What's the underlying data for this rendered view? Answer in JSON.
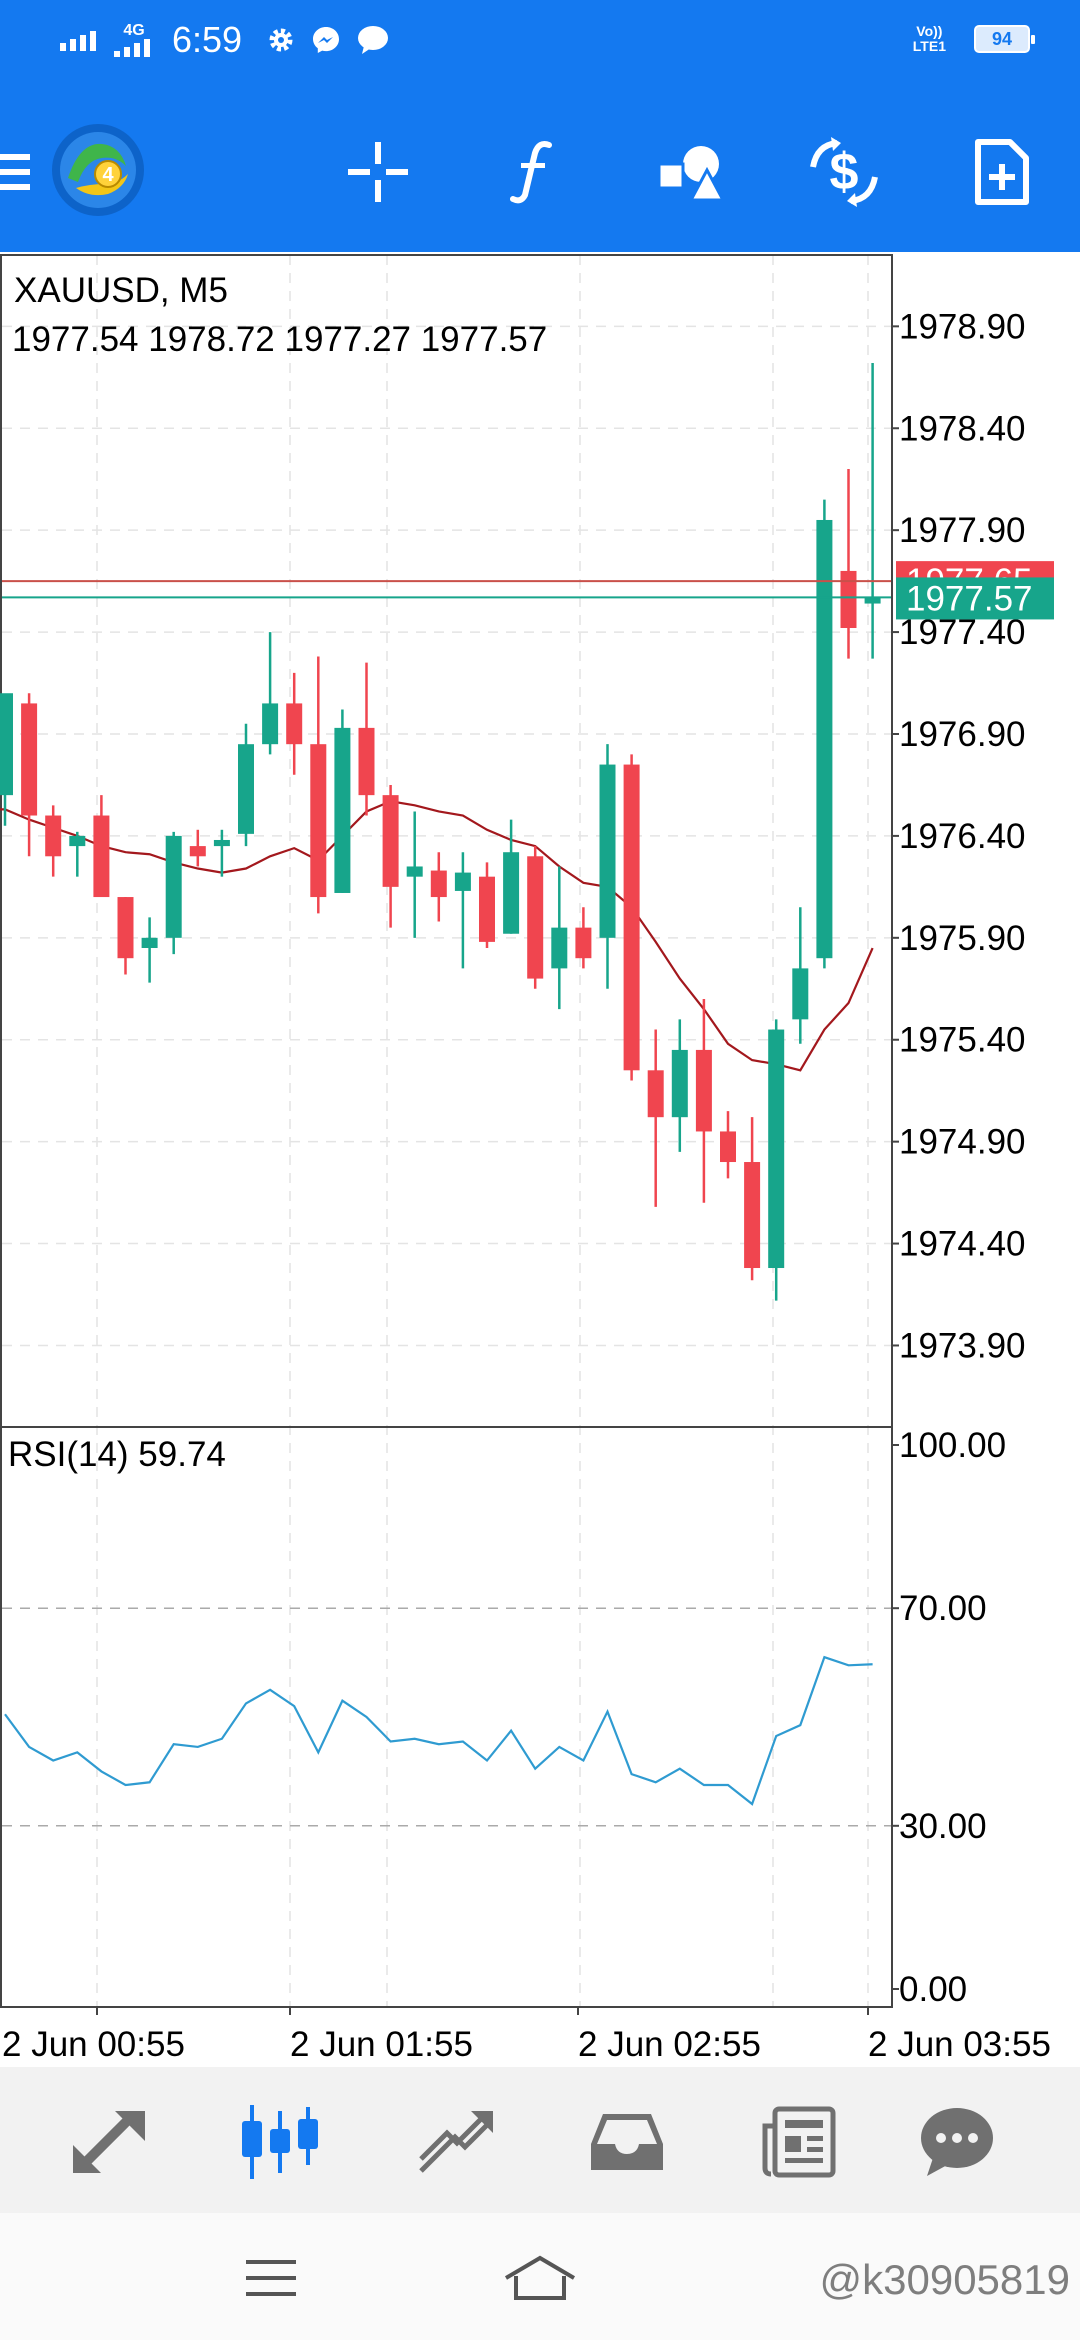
{
  "status_bar": {
    "network": "4G",
    "time": "6:59",
    "volte_line1": "Vo))",
    "volte_line2": "LTE1",
    "battery": "94"
  },
  "toolbar": {
    "icons": [
      "menu-icon",
      "metatrader-logo",
      "crosshair-icon",
      "function-icon",
      "objects-icon",
      "trade-icon",
      "new-order-icon"
    ]
  },
  "chart": {
    "symbol_timeframe": "XAUUSD, M5",
    "ohlc": "1977.54 1978.72 1977.27 1977.57",
    "bid_label": "1977.57",
    "ask_label": "1977.65",
    "price_axis_labels": [
      "1978.90",
      "1978.40",
      "1977.90",
      "1977.40",
      "1976.90",
      "1976.40",
      "1975.90",
      "1975.40",
      "1974.90",
      "1974.40",
      "1973.90"
    ],
    "rsi_label": "RSI(14) 59.74",
    "rsi_axis_labels": [
      "100.00",
      "70.00",
      "30.00",
      "0.00"
    ],
    "time_labels": [
      "2 Jun 00:55",
      "2 Jun 01:55",
      "2 Jun 02:55",
      "2 Jun 03:55"
    ],
    "colors": {
      "bull": "#17a58b",
      "bear": "#f0454f",
      "ma": "#a3181d",
      "rsi": "#2f9bd1",
      "ask_line": "#c9504a"
    }
  },
  "chart_data": {
    "type": "candlestick",
    "symbol": "XAUUSD",
    "timeframe": "M5",
    "ylim": [
      1973.5,
      1979.25
    ],
    "candles": [
      {
        "o": 1976.6,
        "h": 1977.05,
        "l": 1976.45,
        "c": 1977.1
      },
      {
        "o": 1977.05,
        "h": 1977.1,
        "l": 1976.3,
        "c": 1976.5
      },
      {
        "o": 1976.5,
        "h": 1976.55,
        "l": 1976.2,
        "c": 1976.3
      },
      {
        "o": 1976.35,
        "h": 1976.42,
        "l": 1976.2,
        "c": 1976.4
      },
      {
        "o": 1976.5,
        "h": 1976.6,
        "l": 1976.1,
        "c": 1976.1
      },
      {
        "o": 1976.1,
        "h": 1976.1,
        "l": 1975.72,
        "c": 1975.8
      },
      {
        "o": 1975.85,
        "h": 1976.0,
        "l": 1975.68,
        "c": 1975.9
      },
      {
        "o": 1975.9,
        "h": 1976.42,
        "l": 1975.82,
        "c": 1976.4
      },
      {
        "o": 1976.35,
        "h": 1976.43,
        "l": 1976.25,
        "c": 1976.3
      },
      {
        "o": 1976.35,
        "h": 1976.43,
        "l": 1976.2,
        "c": 1976.38
      },
      {
        "o": 1976.41,
        "h": 1976.95,
        "l": 1976.35,
        "c": 1976.85
      },
      {
        "o": 1976.85,
        "h": 1977.4,
        "l": 1976.8,
        "c": 1977.05
      },
      {
        "o": 1977.05,
        "h": 1977.2,
        "l": 1976.7,
        "c": 1976.85
      },
      {
        "o": 1976.85,
        "h": 1977.28,
        "l": 1976.02,
        "c": 1976.1
      },
      {
        "o": 1976.12,
        "h": 1977.02,
        "l": 1976.12,
        "c": 1976.93
      },
      {
        "o": 1976.93,
        "h": 1977.25,
        "l": 1976.5,
        "c": 1976.6
      },
      {
        "o": 1976.6,
        "h": 1976.65,
        "l": 1975.95,
        "c": 1976.15
      },
      {
        "o": 1976.2,
        "h": 1976.52,
        "l": 1975.9,
        "c": 1976.25
      },
      {
        "o": 1976.23,
        "h": 1976.32,
        "l": 1975.98,
        "c": 1976.1
      },
      {
        "o": 1976.13,
        "h": 1976.32,
        "l": 1975.75,
        "c": 1976.22
      },
      {
        "o": 1976.2,
        "h": 1976.27,
        "l": 1975.85,
        "c": 1975.88
      },
      {
        "o": 1975.92,
        "h": 1976.48,
        "l": 1975.92,
        "c": 1976.32
      },
      {
        "o": 1976.3,
        "h": 1976.35,
        "l": 1975.65,
        "c": 1975.7
      },
      {
        "o": 1975.75,
        "h": 1976.25,
        "l": 1975.55,
        "c": 1975.95
      },
      {
        "o": 1975.95,
        "h": 1976.05,
        "l": 1975.75,
        "c": 1975.8
      },
      {
        "o": 1975.9,
        "h": 1976.85,
        "l": 1975.65,
        "c": 1976.75
      },
      {
        "o": 1976.75,
        "h": 1976.8,
        "l": 1975.2,
        "c": 1975.25
      },
      {
        "o": 1975.25,
        "h": 1975.45,
        "l": 1974.58,
        "c": 1975.02
      },
      {
        "o": 1975.02,
        "h": 1975.5,
        "l": 1974.85,
        "c": 1975.35
      },
      {
        "o": 1975.35,
        "h": 1975.6,
        "l": 1974.6,
        "c": 1974.95
      },
      {
        "o": 1974.95,
        "h": 1975.05,
        "l": 1974.72,
        "c": 1974.8
      },
      {
        "o": 1974.8,
        "h": 1975.02,
        "l": 1974.22,
        "c": 1974.28
      },
      {
        "o": 1974.28,
        "h": 1975.5,
        "l": 1974.12,
        "c": 1975.45
      },
      {
        "o": 1975.5,
        "h": 1976.05,
        "l": 1975.38,
        "c": 1975.75
      },
      {
        "o": 1975.8,
        "h": 1978.05,
        "l": 1975.75,
        "c": 1977.95
      },
      {
        "o": 1977.7,
        "h": 1978.2,
        "l": 1977.27,
        "c": 1977.42
      },
      {
        "o": 1977.54,
        "h": 1978.72,
        "l": 1977.27,
        "c": 1977.57
      }
    ],
    "ma": [
      1976.53,
      1976.48,
      1976.44,
      1976.4,
      1976.35,
      1976.32,
      1976.31,
      1976.27,
      1976.24,
      1976.22,
      1976.24,
      1976.3,
      1976.34,
      1976.28,
      1976.4,
      1976.52,
      1976.57,
      1976.55,
      1976.52,
      1976.5,
      1976.43,
      1976.38,
      1976.35,
      1976.25,
      1976.17,
      1976.15,
      1976.05,
      1975.88,
      1975.7,
      1975.55,
      1975.38,
      1975.3,
      1975.28,
      1975.25,
      1975.45,
      1975.58,
      1975.85
    ],
    "ask": 1977.65,
    "bid": 1977.57,
    "rsi": {
      "period": 14,
      "levels": [
        70,
        30
      ],
      "ylim": [
        0,
        100
      ],
      "values": [
        50.5,
        44.5,
        42.0,
        43.5,
        40.0,
        37.5,
        38.0,
        45.0,
        44.5,
        46.0,
        52.5,
        55.0,
        52.0,
        43.5,
        53.0,
        50.0,
        45.5,
        46.0,
        45.0,
        45.5,
        42.0,
        47.5,
        40.5,
        44.5,
        42.0,
        51.0,
        39.5,
        38.0,
        40.5,
        37.5,
        37.5,
        34.0,
        46.5,
        48.5,
        61.0,
        59.5,
        59.7
      ]
    }
  },
  "bottom_tabs": [
    "quotes-tab",
    "chart-tab",
    "trade-tab",
    "history-tab",
    "news-tab",
    "chat-tab"
  ],
  "watermark": "@k30905819"
}
